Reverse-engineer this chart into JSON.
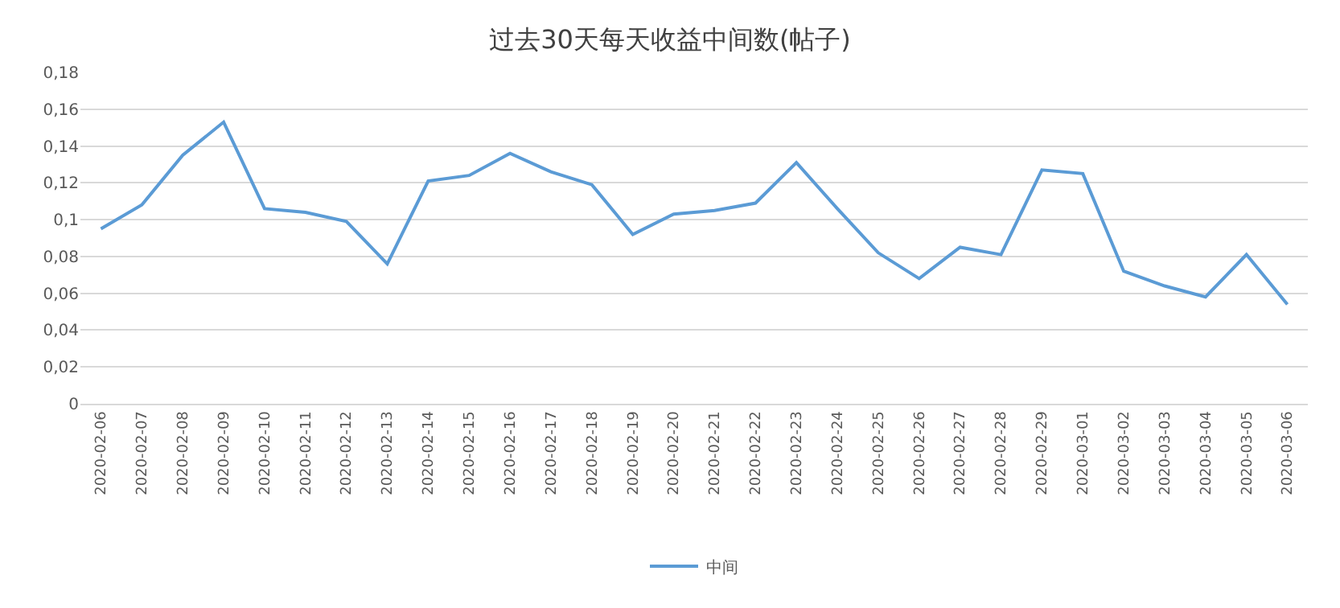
{
  "chart_data": {
    "type": "line",
    "title": "过去30天每天收益中间数(帖子)",
    "categories": [
      "2020-02-06",
      "2020-02-07",
      "2020-02-08",
      "2020-02-09",
      "2020-02-10",
      "2020-02-11",
      "2020-02-12",
      "2020-02-13",
      "2020-02-14",
      "2020-02-15",
      "2020-02-16",
      "2020-02-17",
      "2020-02-18",
      "2020-02-19",
      "2020-02-20",
      "2020-02-21",
      "2020-02-22",
      "2020-02-23",
      "2020-02-24",
      "2020-02-25",
      "2020-02-26",
      "2020-02-27",
      "2020-02-28",
      "2020-02-29",
      "2020-03-01",
      "2020-03-02",
      "2020-03-03",
      "2020-03-04",
      "2020-03-05",
      "2020-03-06"
    ],
    "series": [
      {
        "name": "中间",
        "color": "#5b9bd5",
        "values": [
          0.095,
          0.108,
          0.135,
          0.153,
          0.106,
          0.104,
          0.099,
          0.076,
          0.121,
          0.124,
          0.136,
          0.126,
          0.119,
          0.092,
          0.103,
          0.105,
          0.109,
          0.131,
          0.106,
          0.082,
          0.068,
          0.085,
          0.081,
          0.127,
          0.125,
          0.072,
          0.064,
          0.058,
          0.081,
          0.054
        ]
      }
    ],
    "ylim": [
      0,
      0.18
    ],
    "yticks": [
      0,
      {
        "value": 0.02,
        "label": "0,02"
      },
      {
        "value": 0.04,
        "label": "0,04"
      },
      {
        "value": 0.06,
        "label": "0,06"
      },
      {
        "value": 0.08,
        "label": "0,08"
      },
      {
        "value": 0.1,
        "label": "0,1"
      },
      {
        "value": 0.12,
        "label": "0,12"
      },
      {
        "value": 0.14,
        "label": "0,14"
      },
      {
        "value": 0.16,
        "label": "0,16"
      },
      {
        "value": 0.18,
        "label": "0,18"
      }
    ],
    "grid": "y",
    "legend": "bottom",
    "marker": "none",
    "line_style": "solid"
  }
}
